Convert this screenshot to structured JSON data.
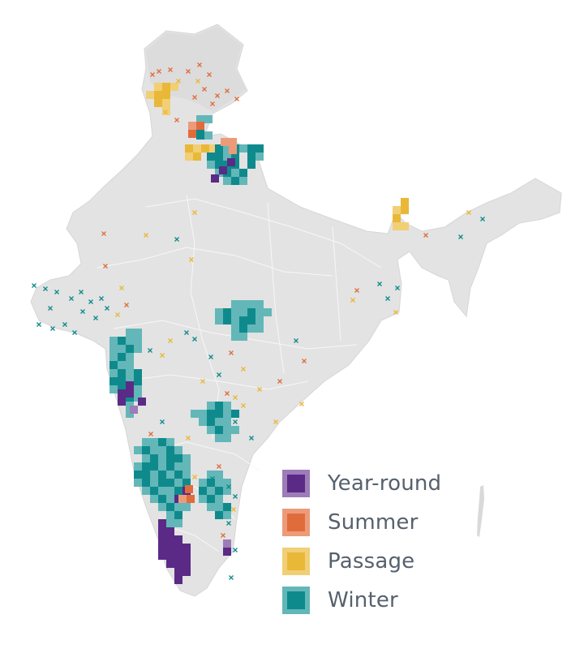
{
  "map": {
    "land_color": "#e3e3e3",
    "border_color": "#f6f6f6",
    "background": "#ffffff"
  },
  "legend": {
    "items": [
      {
        "label": "Year-round",
        "key": "year_round",
        "color": "#5b2a86",
        "border": "#9d7cb8"
      },
      {
        "label": "Summer",
        "key": "summer",
        "color": "#e06c3c",
        "border": "#ec9b7a"
      },
      {
        "label": "Passage",
        "key": "passage",
        "color": "#e9b838",
        "border": "#f1cf76"
      },
      {
        "label": "Winter",
        "key": "winter",
        "color": "#0f8a8c",
        "border": "#63b7b8"
      }
    ]
  }
}
